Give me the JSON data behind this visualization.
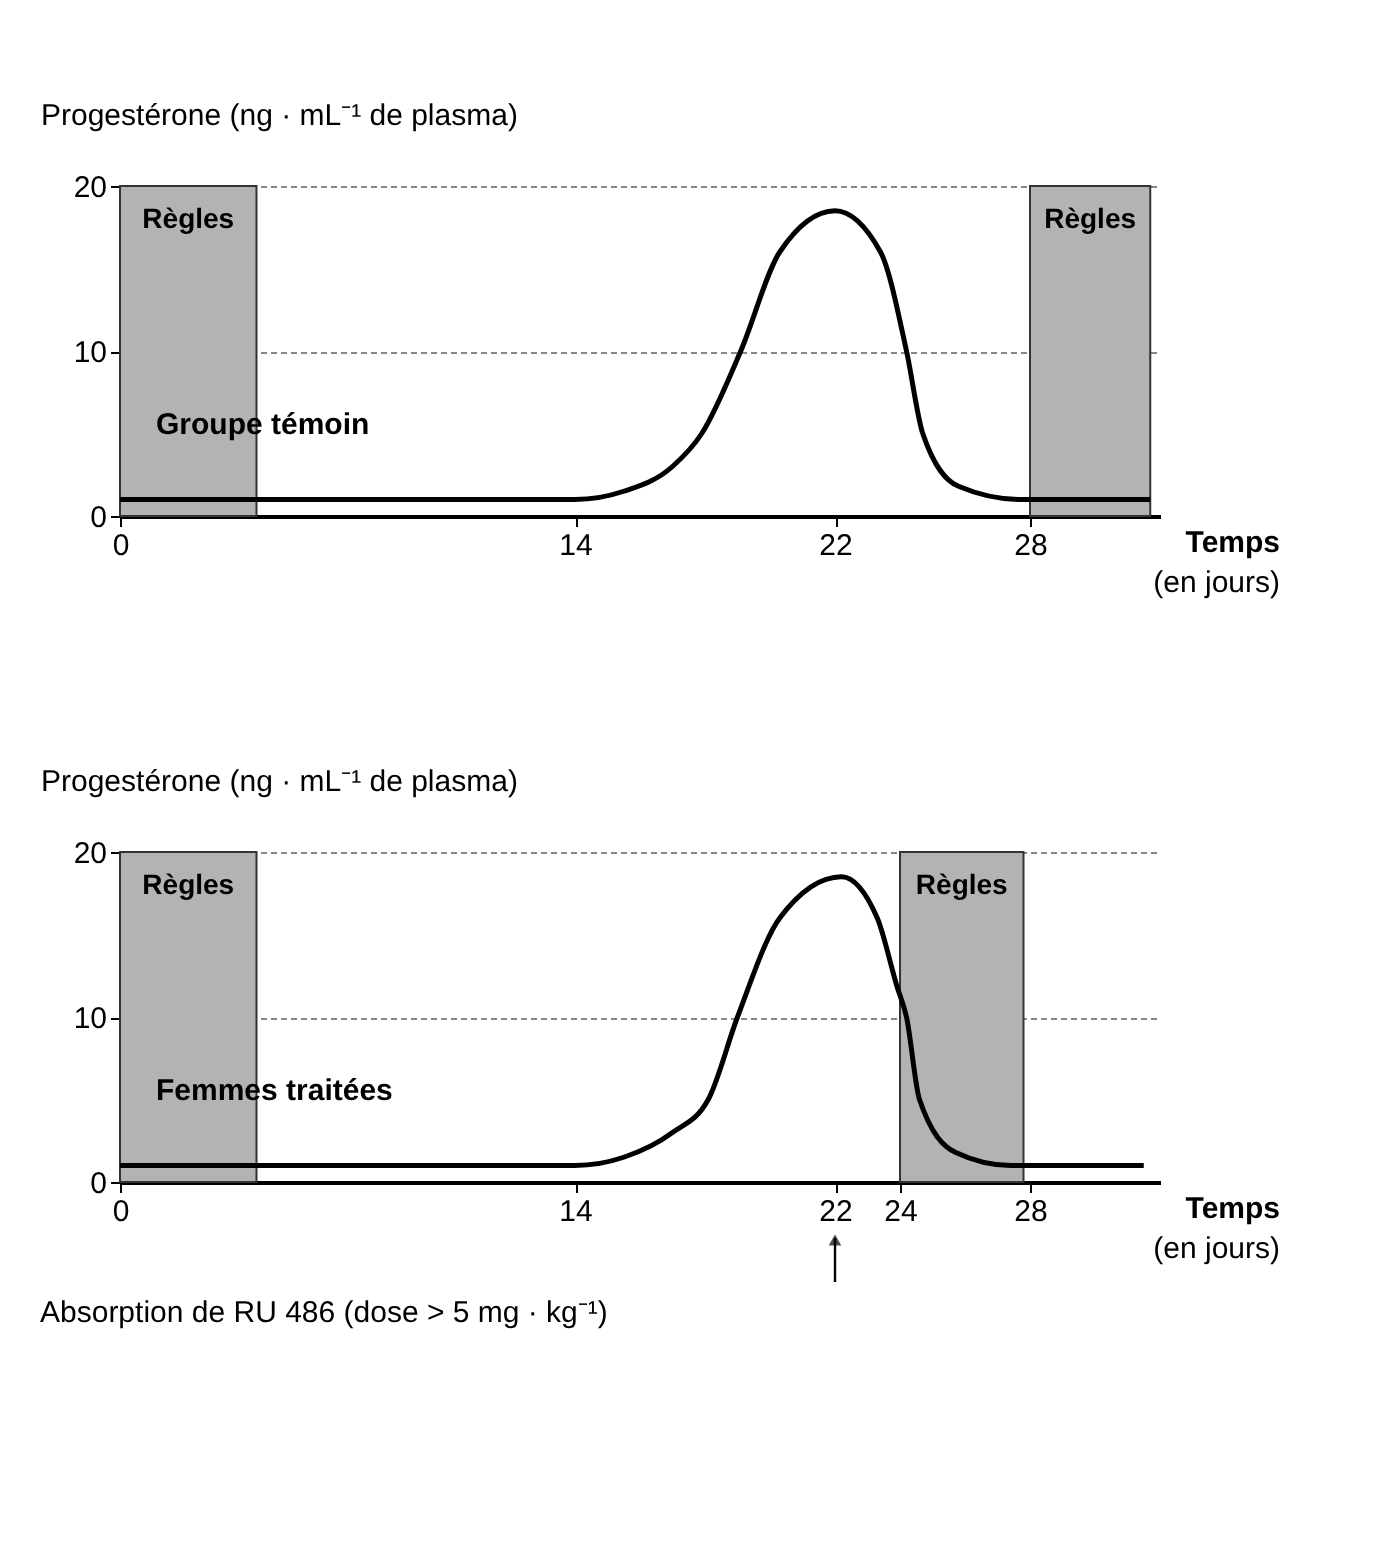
{
  "chart_data": [
    {
      "type": "line",
      "xlabel": "Temps (en jours)",
      "ylabel": "Progestérone (ng · mL⁻¹ de plasma)",
      "xlim": [
        0,
        32
      ],
      "xticks": [
        0,
        14,
        22,
        28
      ],
      "ylim": [
        0,
        20
      ],
      "yticks": [
        0,
        10,
        20
      ],
      "grid": "y",
      "bands": [
        {
          "axis": "x",
          "from": 0,
          "to": 4.2,
          "label": "Règles",
          "color": "#b3b3b3"
        },
        {
          "axis": "x",
          "from": 28,
          "to": 31.7,
          "label": "Règles",
          "color": "#b3b3b3"
        }
      ],
      "series": [
        {
          "name": "Groupe témoin",
          "color": "#000000",
          "x": [
            0,
            14,
            15.5,
            17,
            17.9,
            19.1,
            20.3,
            22,
            23.4,
            24.2,
            24.7,
            25.8,
            27.7,
            31.7
          ],
          "values": [
            1,
            1,
            1.5,
            3,
            5,
            10,
            16,
            18.5,
            16,
            10,
            5,
            1.8,
            1,
            1
          ]
        }
      ]
    },
    {
      "type": "line",
      "xlabel": "Temps (en jours)",
      "ylabel": "Progestérone (ng · mL⁻¹ de plasma)",
      "xlim": [
        0,
        32
      ],
      "xticks": [
        0,
        14,
        22,
        24,
        28
      ],
      "ylim": [
        0,
        20
      ],
      "yticks": [
        0,
        10,
        20
      ],
      "grid": "y",
      "bands": [
        {
          "axis": "x",
          "from": 0,
          "to": 4.2,
          "label": "Règles",
          "color": "#b3b3b3"
        },
        {
          "axis": "x",
          "from": 24,
          "to": 27.8,
          "label": "Règles",
          "color": "#b3b3b3"
        }
      ],
      "annotations": [
        "Absorption de RU 486 (dose > 5 mg · kg⁻¹)"
      ],
      "series": [
        {
          "name": "Femmes traitées",
          "color": "#000000",
          "x": [
            0,
            14,
            15.5,
            17,
            18.1,
            19,
            20.3,
            22.2,
            23.3,
            23.9,
            24.2,
            24.6,
            25.7,
            27.4,
            31.5
          ],
          "values": [
            1,
            1,
            1.5,
            3,
            5,
            10,
            16,
            18.5,
            16,
            11.9,
            10,
            5,
            1.8,
            1,
            1
          ]
        }
      ]
    }
  ]
}
